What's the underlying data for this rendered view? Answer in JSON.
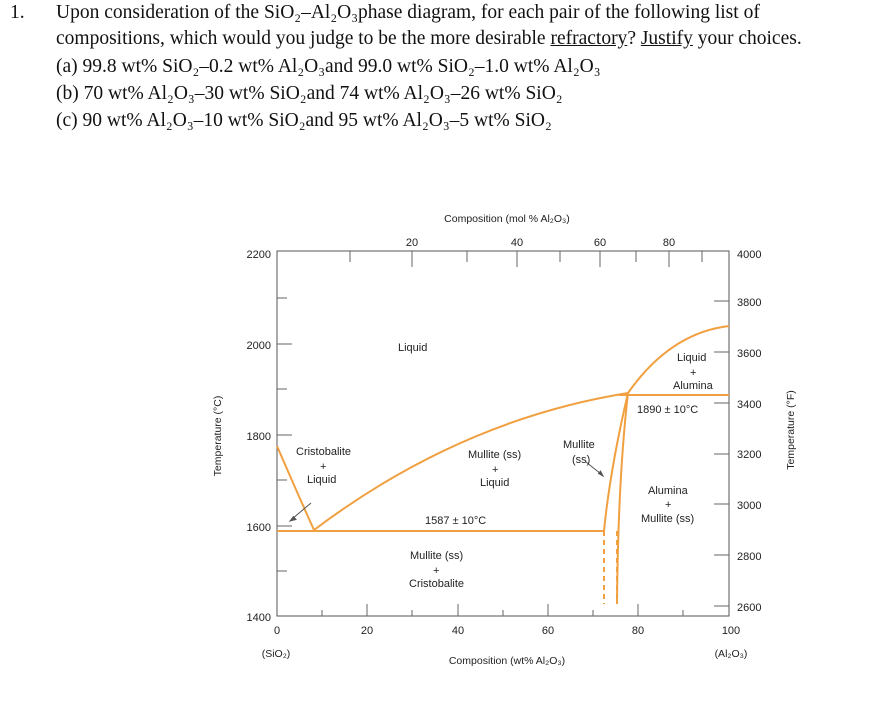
{
  "question": {
    "number": "1.",
    "line1": "Upon consideration of the SiO₂–Al₂O₃phase diagram, for each pair of the following list of",
    "line2_pre": "compositions, which would you judge to be the more desirable ",
    "line2_u1": "refractory",
    "line2_mid": "? ",
    "line2_u2": "Justify",
    "line2_post": " your choices.",
    "a": "(a) 99.8 wt% SiO₂–0.2 wt% Al₂O₃and 99.0 wt% SiO₂–1.0 wt% Al₂O₃",
    "b": "(b) 70 wt% Al₂O₃–30 wt% SiO₂and 74 wt% Al₂O₃–26 wt% SiO₂",
    "c": "(c) 90 wt% Al₂O₃–10 wt% SiO₂and 95 wt% Al₂O₃–5 wt% SiO₂"
  },
  "diagram": {
    "top_axis_title": "Composition (mol % Al₂O₃)",
    "bottom_axis_title": "Composition (wt% Al₂O₃)",
    "left_axis_title": "Temperature (°C)",
    "right_axis_title": "Temperature (°F)",
    "left_end_label": "(SiO₂)",
    "right_end_label": "(Al₂O₃)",
    "bottom_ticks": [
      "0",
      "20",
      "40",
      "60",
      "80",
      "100"
    ],
    "top_ticks": [
      "20",
      "40",
      "60",
      "80"
    ],
    "left_ticks": [
      "2200",
      "2000",
      "1800",
      "1600",
      "1400"
    ],
    "right_ticks": [
      "4000",
      "3800",
      "3600",
      "3400",
      "3200",
      "3000",
      "2800",
      "2600"
    ],
    "regions": {
      "liquid": "Liquid",
      "cristobalite": "Cristobalite",
      "plus": "+",
      "liquid2": "Liquid",
      "mullite_liquid_1": "Mullite (ss)",
      "mullite_liquid_3": "Liquid",
      "mullite_ss_1": "Mullite",
      "mullite_ss_2": "(ss)",
      "liquid_alumina_1": "Liquid",
      "liquid_alumina_3": "Alumina",
      "alumina_mullite_1": "Alumina",
      "alumina_mullite_3": "Mullite (ss)",
      "mullite_crist_1": "Mullite (ss)",
      "mullite_crist_3": "Cristobalite",
      "eutectic_1": "1587 ± 10°C",
      "eutectic_2": "1890 ± 10°C"
    },
    "colors": {
      "phase_line": "#f0a040",
      "axis": "#555555"
    }
  }
}
